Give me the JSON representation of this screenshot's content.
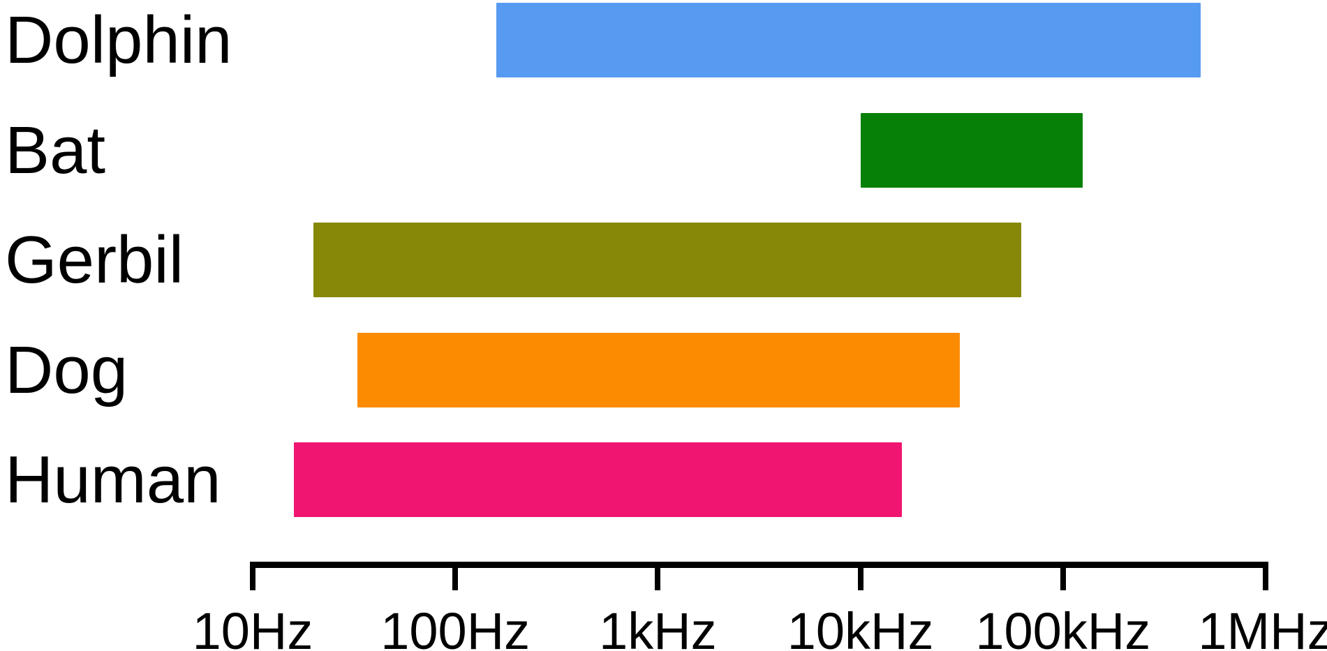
{
  "chart_data": {
    "type": "bar",
    "subtype": "horizontal-log-frequency-range",
    "orientation": "horizontal",
    "grid": false,
    "legend": false,
    "x_axis": {
      "scale": "log10",
      "min_hz": 10,
      "max_hz": 1000000,
      "ticks": [
        {
          "hz": 10,
          "label": "10Hz"
        },
        {
          "hz": 100,
          "label": "100Hz"
        },
        {
          "hz": 1000,
          "label": "1kHz"
        },
        {
          "hz": 10000,
          "label": "10kHz"
        },
        {
          "hz": 100000,
          "label": "100kHz"
        },
        {
          "hz": 1000000,
          "label": "1MHz"
        }
      ]
    },
    "series": [
      {
        "name": "Dolphin",
        "low_hz": 160,
        "high_hz": 480000,
        "color": "#579af2"
      },
      {
        "name": "Bat",
        "low_hz": 10000,
        "high_hz": 125000,
        "color": "#068006"
      },
      {
        "name": "Gerbil",
        "low_hz": 20,
        "high_hz": 62000,
        "color": "#878708"
      },
      {
        "name": "Dog",
        "low_hz": 33,
        "high_hz": 31000,
        "color": "#fb8b00"
      },
      {
        "name": "Human",
        "low_hz": 16,
        "high_hz": 16000,
        "color": "#f01570"
      }
    ]
  },
  "colors": {
    "background": "#ffffff",
    "axis": "#000000",
    "text": "#000000"
  }
}
